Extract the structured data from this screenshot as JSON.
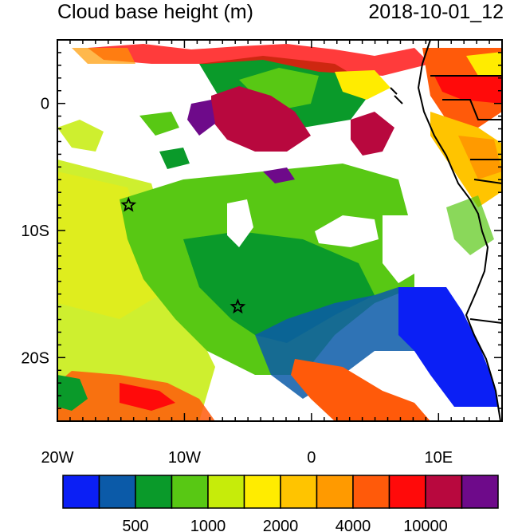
{
  "header": {
    "title": "Cloud base height (m)",
    "timestamp": "2018-10-01_12"
  },
  "axes": {
    "x_ticks": [
      {
        "lon": -20,
        "label": "20W"
      },
      {
        "lon": -10,
        "label": "10W"
      },
      {
        "lon": 0,
        "label": "0"
      },
      {
        "lon": 10,
        "label": "10E"
      }
    ],
    "y_ticks": [
      {
        "lat": 0,
        "label": "0"
      },
      {
        "lat": -10,
        "label": "10S"
      },
      {
        "lat": -20,
        "label": "20S"
      }
    ],
    "lon_range": [
      -20,
      15
    ],
    "lat_range": [
      -25,
      5
    ]
  },
  "markers": [
    {
      "name": "star-marker-north",
      "lon": -14.4,
      "lat": -8.0
    },
    {
      "name": "star-marker-south",
      "lon": -5.8,
      "lat": -16.0
    }
  ],
  "colorbar": {
    "colors": [
      "#0b1ff5",
      "#0b5aa8",
      "#0a9a2a",
      "#58c814",
      "#c6ec0a",
      "#ffec00",
      "#ffc400",
      "#ff9a00",
      "#ff5a0a",
      "#ff0a0a",
      "#b8083e",
      "#6e0a8a"
    ],
    "labels": [
      {
        "value": 500,
        "after_segment": 2,
        "text": "500"
      },
      {
        "value": 1000,
        "after_segment": 4,
        "text": "1000"
      },
      {
        "value": 2000,
        "after_segment": 6,
        "text": "2000"
      },
      {
        "value": 4000,
        "after_segment": 8,
        "text": "4000"
      },
      {
        "value": 10000,
        "after_segment": 10,
        "text": "10000"
      }
    ]
  }
}
